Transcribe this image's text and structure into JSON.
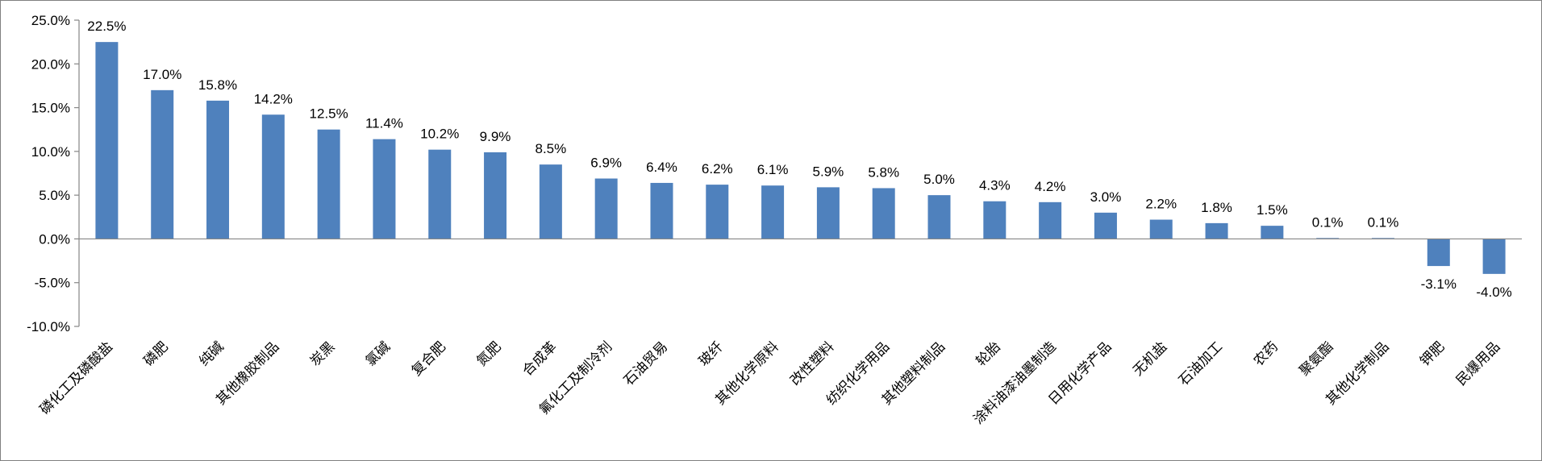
{
  "chart_data": {
    "type": "bar",
    "title": "",
    "xlabel": "",
    "ylabel": "",
    "ylim": [
      -10,
      25
    ],
    "y_ticks": [
      "25.0%",
      "20.0%",
      "15.0%",
      "10.0%",
      "5.0%",
      "0.0%",
      "-5.0%",
      "-10.0%"
    ],
    "grid": false,
    "legend": "none",
    "bar_color": "#4f81bd",
    "categories": [
      "磷化工及磷酸盐",
      "磷肥",
      "纯碱",
      "其他橡胶制品",
      "炭黑",
      "氯碱",
      "复合肥",
      "氮肥",
      "合成革",
      "氟化工及制冷剂",
      "石油贸易",
      "玻纤",
      "其他化学原料",
      "改性塑料",
      "纺织化学用品",
      "其他塑料制品",
      "轮胎",
      "涂料油漆油墨制造",
      "日用化学产品",
      "无机盐",
      "石油加工",
      "农药",
      "聚氨酯",
      "其他化学制品",
      "钾肥",
      "民爆用品"
    ],
    "values": [
      22.5,
      17.0,
      15.8,
      14.2,
      12.5,
      11.4,
      10.2,
      9.9,
      8.5,
      6.9,
      6.4,
      6.2,
      6.1,
      5.9,
      5.8,
      5.0,
      4.3,
      4.2,
      3.0,
      2.2,
      1.8,
      1.5,
      0.1,
      0.1,
      -3.1,
      -4.0
    ],
    "data_labels": [
      "22.5%",
      "17.0%",
      "15.8%",
      "14.2%",
      "12.5%",
      "11.4%",
      "10.2%",
      "9.9%",
      "8.5%",
      "6.9%",
      "6.4%",
      "6.2%",
      "6.1%",
      "5.9%",
      "5.8%",
      "5.0%",
      "4.3%",
      "4.2%",
      "3.0%",
      "2.2%",
      "1.8%",
      "1.5%",
      "0.1%",
      "0.1%",
      "-3.1%",
      "-4.0%"
    ]
  }
}
